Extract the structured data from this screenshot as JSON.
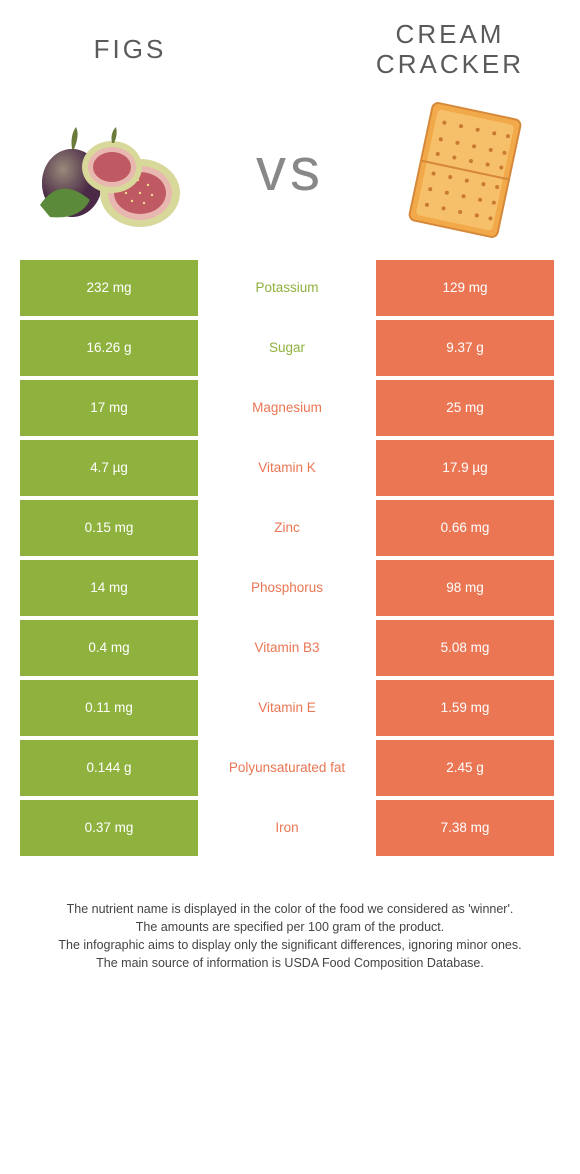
{
  "colors": {
    "green": "#8fb23e",
    "orange": "#ea7654",
    "title_text": "#5a5a5a",
    "vs_text": "#8a8a8a",
    "footnote_text": "#444444"
  },
  "food_left": {
    "name": "Figs",
    "color_key": "green"
  },
  "food_right": {
    "name": "Cream Cracker",
    "color_key": "orange"
  },
  "vs_label": "vs",
  "rows": [
    {
      "nutrient": "Potassium",
      "left": "232 mg",
      "right": "129 mg",
      "winner": "green"
    },
    {
      "nutrient": "Sugar",
      "left": "16.26 g",
      "right": "9.37 g",
      "winner": "green"
    },
    {
      "nutrient": "Magnesium",
      "left": "17 mg",
      "right": "25 mg",
      "winner": "orange"
    },
    {
      "nutrient": "Vitamin K",
      "left": "4.7 µg",
      "right": "17.9 µg",
      "winner": "orange"
    },
    {
      "nutrient": "Zinc",
      "left": "0.15 mg",
      "right": "0.66 mg",
      "winner": "orange"
    },
    {
      "nutrient": "Phosphorus",
      "left": "14 mg",
      "right": "98 mg",
      "winner": "orange"
    },
    {
      "nutrient": "Vitamin B3",
      "left": "0.4 mg",
      "right": "5.08 mg",
      "winner": "orange"
    },
    {
      "nutrient": "Vitamin E",
      "left": "0.11 mg",
      "right": "1.59 mg",
      "winner": "orange"
    },
    {
      "nutrient": "Polyunsaturated fat",
      "left": "0.144 g",
      "right": "2.45 g",
      "winner": "orange"
    },
    {
      "nutrient": "Iron",
      "left": "0.37 mg",
      "right": "7.38 mg",
      "winner": "orange"
    }
  ],
  "footnote": [
    "The nutrient name is displayed in the color of the food we considered as 'winner'.",
    "The amounts are specified per 100 gram of the product.",
    "The infographic aims to display only the significant differences, ignoring minor ones.",
    "The main source of information is USDA Food Composition Database."
  ]
}
